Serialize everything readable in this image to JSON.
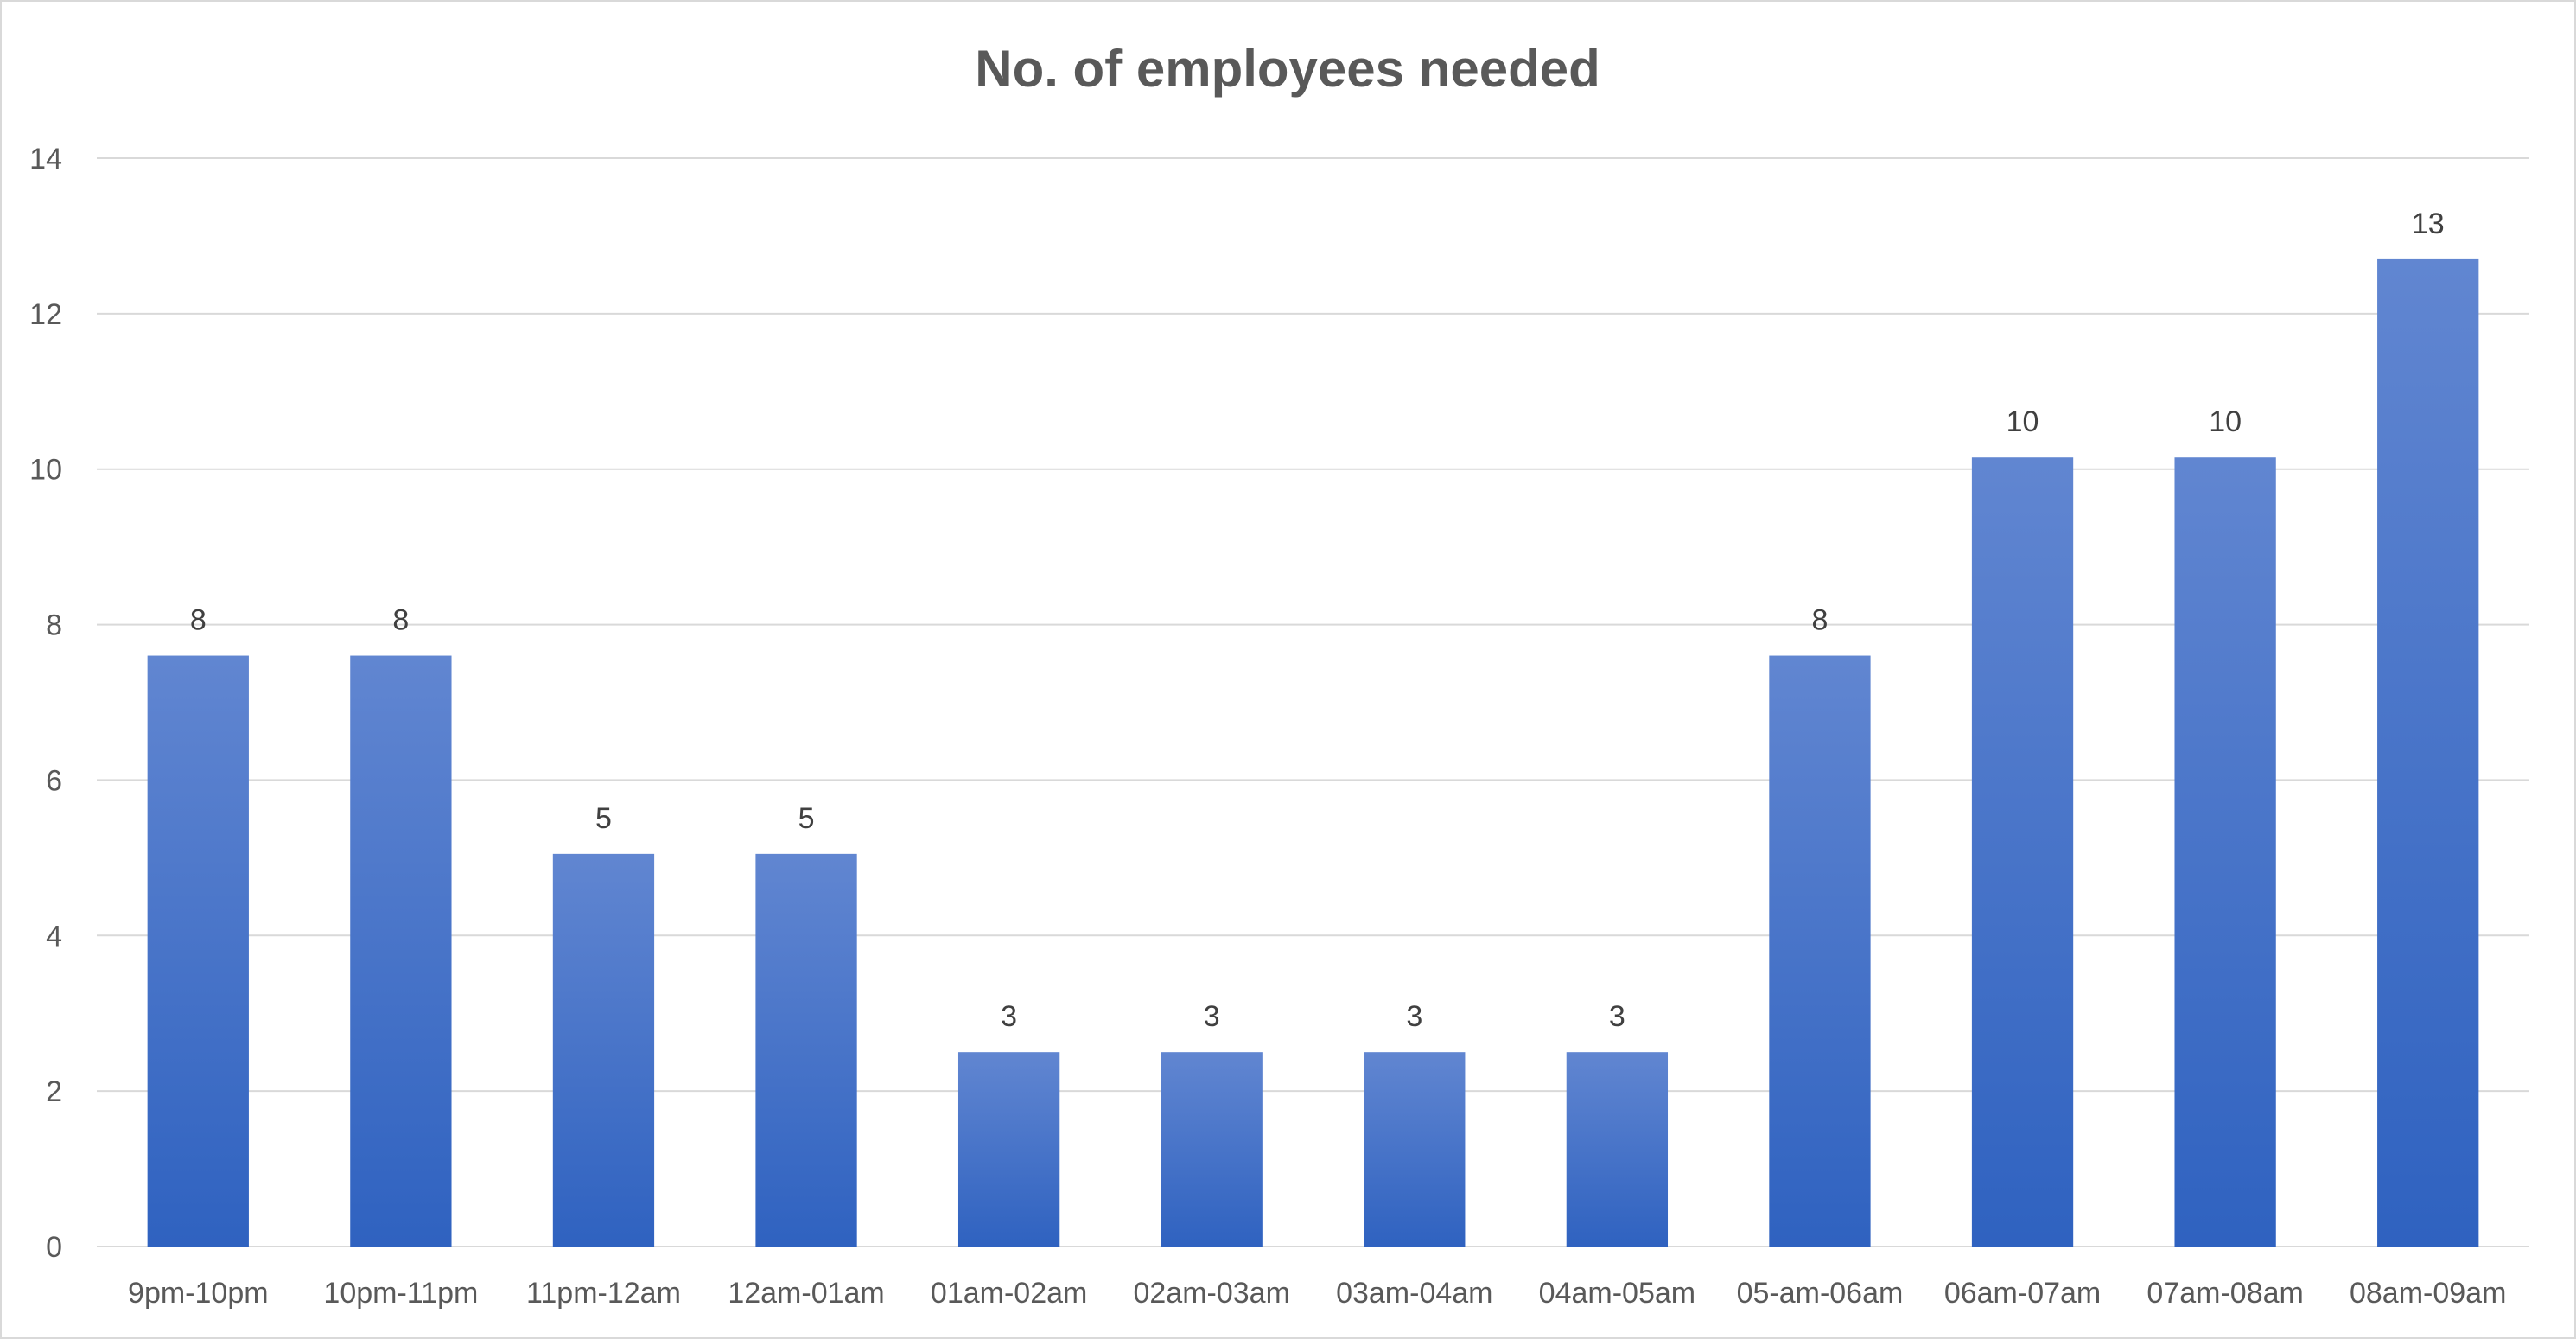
{
  "chart_data": {
    "type": "bar",
    "title": "No. of employees needed",
    "xlabel": "",
    "ylabel": "",
    "categories": [
      "9pm-10pm",
      "10pm-11pm",
      "11pm-12am",
      "12am-01am",
      "01am-02am",
      "02am-03am",
      "03am-04am",
      "04am-05am",
      "05-am-06am",
      "06am-07am",
      "07am-08am",
      "08am-09am"
    ],
    "values": [
      7.6,
      7.6,
      5.05,
      5.05,
      2.5,
      2.5,
      2.5,
      2.5,
      7.6,
      10.15,
      10.15,
      12.7
    ],
    "data_labels": [
      "8",
      "8",
      "5",
      "5",
      "3",
      "3",
      "3",
      "3",
      "8",
      "10",
      "10",
      "13"
    ],
    "ylim": [
      0,
      14
    ],
    "yticks": [
      0,
      2,
      4,
      6,
      8,
      10,
      12,
      14
    ],
    "grid": true,
    "legend": "none",
    "colors": {
      "bar_top": "#6186d1",
      "bar_bottom": "#2f62c0",
      "grid": "#d9d9d9",
      "text": "#595959",
      "label": "#404040"
    }
  }
}
